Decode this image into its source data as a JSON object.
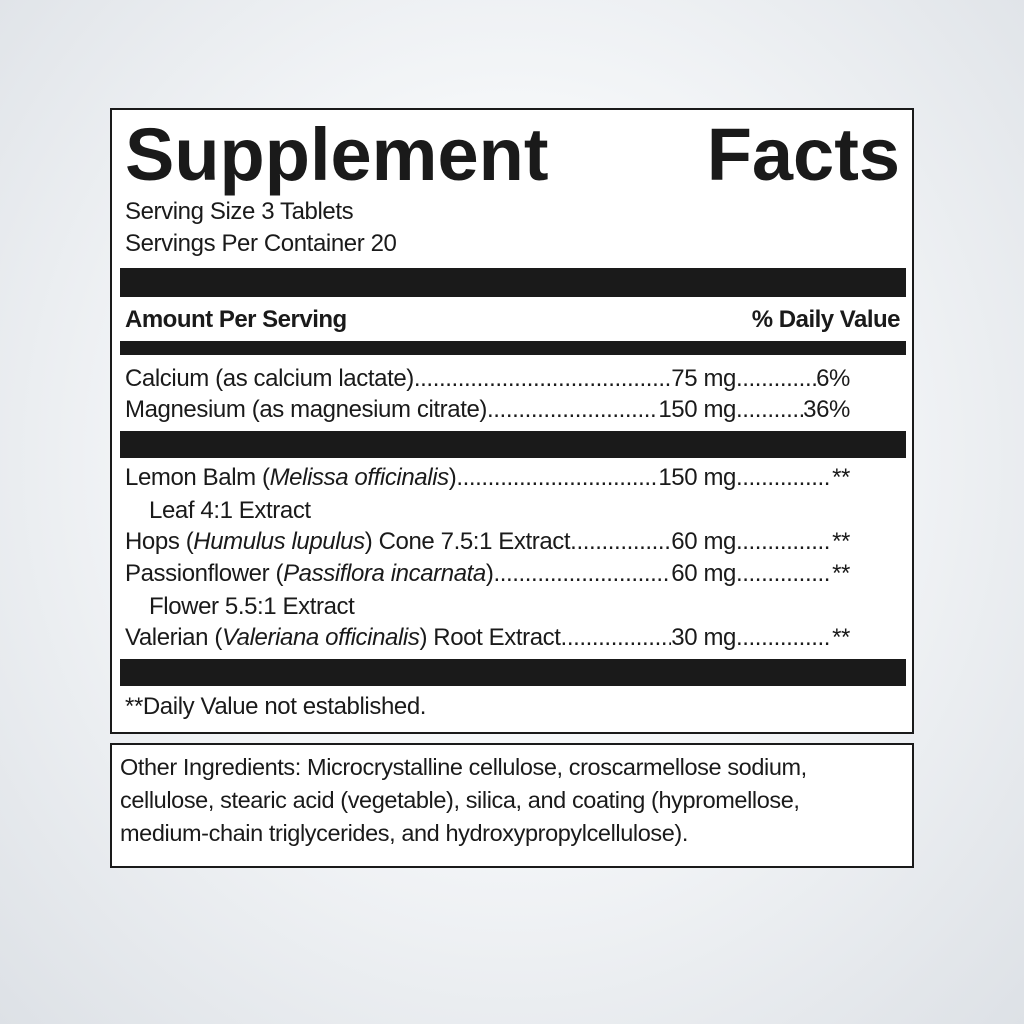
{
  "title": {
    "word1": "Supplement",
    "word2": "Facts"
  },
  "serving_size": "Serving Size 3 Tablets",
  "servings_per_container": "Servings Per Container 20",
  "header": {
    "amount": "Amount Per Serving",
    "dv": "% Daily Value"
  },
  "leader": "........................................................................................................",
  "nutrients": [
    {
      "name": "Calcium (as calcium lactate)",
      "amount": "75 mg",
      "dv": "6%"
    },
    {
      "name": "Magnesium (as magnesium citrate)",
      "amount": "150 mg",
      "dv": "36%"
    }
  ],
  "botanicals": [
    {
      "pre": "Lemon Balm (",
      "latin": "Melissa officinalis",
      "post": ")",
      "sub": "Leaf 4:1 Extract",
      "amount": "150 mg",
      "dv": "**"
    },
    {
      "pre": "Hops (",
      "latin": "Humulus lupulus",
      "post": ") Cone 7.5:1 Extract",
      "amount": "60 mg",
      "dv": "**"
    },
    {
      "pre": "Passionflower (",
      "latin": "Passiflora incarnata",
      "post": ")",
      "sub": "Flower 5.5:1 Extract",
      "amount": "60 mg",
      "dv": "**"
    },
    {
      "pre": "Valerian (",
      "latin": "Valeriana officinalis",
      "post": ") Root Extract",
      "amount": "30 mg",
      "dv": "**"
    }
  ],
  "footnote": "**Daily Value not established.",
  "other_ingredients": {
    "lines": [
      "Other Ingredients: Microcrystalline cellulose, croscarmellose sodium,",
      "cellulose, stearic acid (vegetable), silica, and coating (hypromellose,",
      "medium-chain triglycerides, and hydroxypropylcellulose)."
    ]
  }
}
